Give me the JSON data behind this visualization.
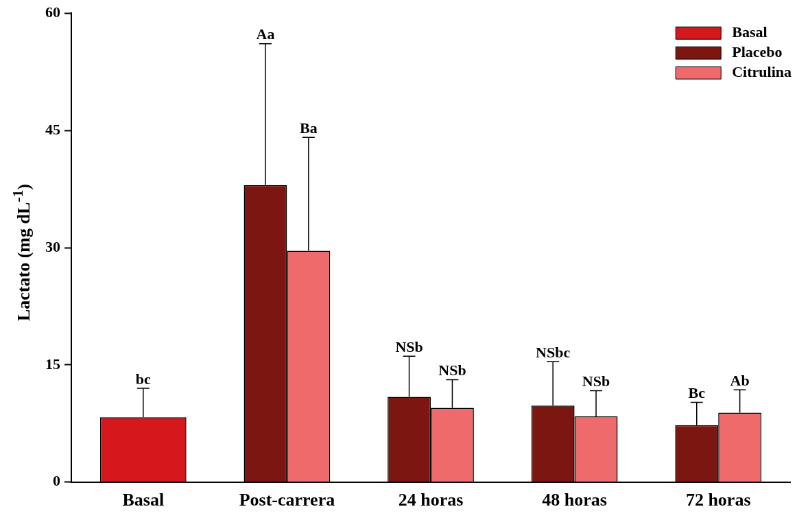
{
  "chart_data": {
    "type": "bar",
    "ylabel": "Lactato (mg dL$^{-1}$)",
    "categories": [
      "Basal",
      "Post-carrera",
      "24 horas",
      "48 horas",
      "72 horas"
    ],
    "series": [
      {
        "name": "Basal",
        "color": "#d4181b",
        "values": [
          8.3,
          null,
          null,
          null,
          null
        ],
        "errors": [
          [
            8.3,
            12.0
          ],
          null,
          null,
          null,
          null
        ]
      },
      {
        "name": "Placebo",
        "color": "#7b1710",
        "values": [
          null,
          38.0,
          10.9,
          9.8,
          7.3
        ],
        "errors": [
          null,
          [
            38.0,
            56.1
          ],
          [
            10.9,
            16.1
          ],
          [
            9.8,
            15.4
          ],
          [
            7.3,
            10.2
          ]
        ]
      },
      {
        "name": "Citrulina",
        "color": "#ef6b6b",
        "values": [
          null,
          29.6,
          9.5,
          8.4,
          8.9
        ],
        "errors": [
          null,
          [
            29.6,
            44.1
          ],
          [
            9.5,
            13.1
          ],
          [
            8.4,
            11.7
          ],
          [
            8.9,
            11.8
          ]
        ]
      }
    ],
    "ylim": [
      0,
      60
    ],
    "yticks": [
      0,
      15,
      30,
      45,
      60
    ],
    "grid": false,
    "legend": "top right",
    "annotations": [
      "bc",
      "Aa",
      "Ba",
      "NSb",
      "NSb",
      "NSbc",
      "NSb",
      "Bc",
      "Ab"
    ]
  }
}
